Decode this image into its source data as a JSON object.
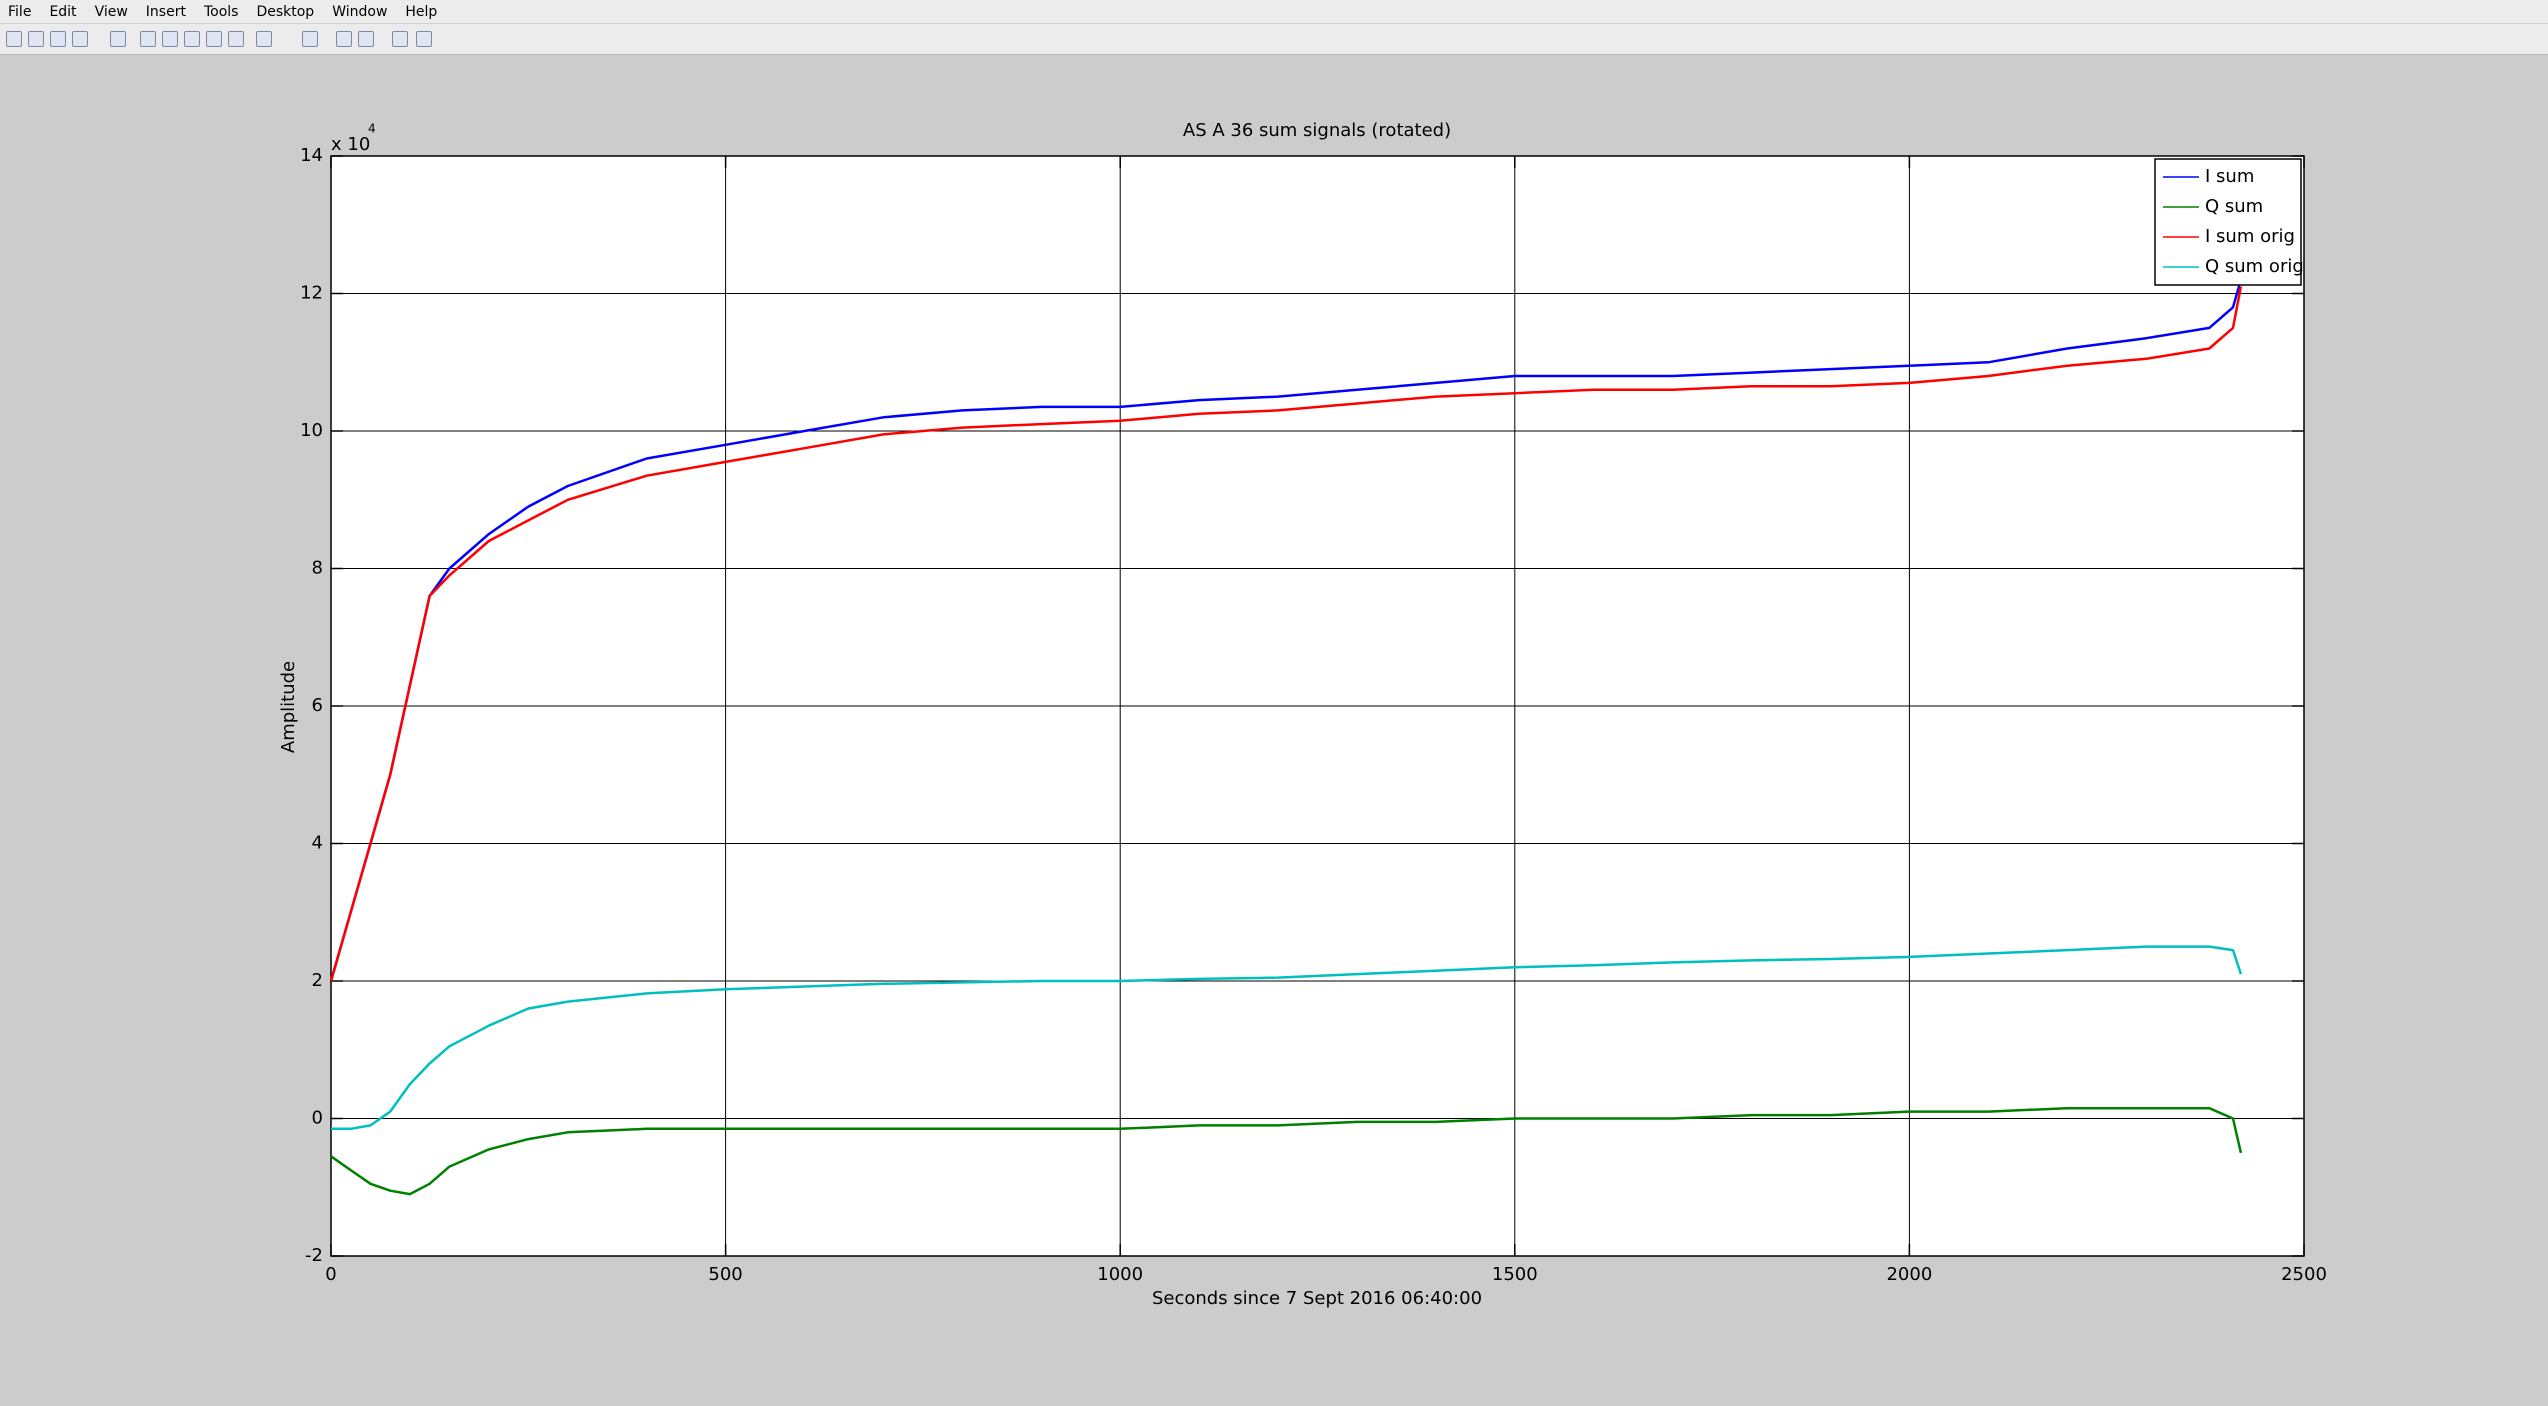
{
  "menu": [
    "File",
    "Edit",
    "View",
    "Insert",
    "Tools",
    "Desktop",
    "Window",
    "Help"
  ],
  "chart_data": {
    "type": "line",
    "title": "AS A 36 sum signals (rotated)",
    "x_label": "Seconds since 7 Sept 2016 06:40:00",
    "y_label": "Amplitude",
    "y_multiplier": "x 10",
    "y_exponent": "4",
    "x": [
      0,
      25,
      50,
      75,
      100,
      125,
      150,
      200,
      250,
      300,
      400,
      500,
      600,
      700,
      800,
      900,
      1000,
      1100,
      1200,
      1300,
      1400,
      1500,
      1600,
      1700,
      1800,
      1900,
      2000,
      2100,
      2200,
      2300,
      2380,
      2410,
      2420
    ],
    "series": [
      {
        "name": "I sum",
        "color": "#0000ff",
        "values": [
          2.0,
          3.0,
          4.0,
          5.0,
          6.3,
          7.6,
          8.0,
          8.5,
          8.9,
          9.2,
          9.6,
          9.8,
          10.0,
          10.2,
          10.3,
          10.35,
          10.35,
          10.45,
          10.5,
          10.6,
          10.7,
          10.8,
          10.8,
          10.8,
          10.85,
          10.9,
          10.95,
          11.0,
          11.2,
          11.35,
          11.5,
          11.8,
          12.2
        ]
      },
      {
        "name": "Q sum",
        "color": "#008000",
        "values": [
          -0.55,
          -0.75,
          -0.95,
          -1.05,
          -1.1,
          -0.95,
          -0.7,
          -0.45,
          -0.3,
          -0.2,
          -0.15,
          -0.15,
          -0.15,
          -0.15,
          -0.15,
          -0.15,
          -0.15,
          -0.1,
          -0.1,
          -0.05,
          -0.05,
          0.0,
          0.0,
          0.0,
          0.05,
          0.05,
          0.1,
          0.1,
          0.15,
          0.15,
          0.15,
          0.0,
          -0.5
        ]
      },
      {
        "name": "I sum orig",
        "color": "#ff0000",
        "values": [
          2.0,
          3.0,
          4.0,
          5.0,
          6.3,
          7.6,
          7.9,
          8.4,
          8.7,
          9.0,
          9.35,
          9.55,
          9.75,
          9.95,
          10.05,
          10.1,
          10.15,
          10.25,
          10.3,
          10.4,
          10.5,
          10.55,
          10.6,
          10.6,
          10.65,
          10.65,
          10.7,
          10.8,
          10.95,
          11.05,
          11.2,
          11.5,
          12.1
        ]
      },
      {
        "name": "Q sum orig",
        "color": "#00bfbf",
        "values": [
          -0.15,
          -0.15,
          -0.1,
          0.1,
          0.5,
          0.8,
          1.05,
          1.35,
          1.6,
          1.7,
          1.82,
          1.88,
          1.92,
          1.96,
          1.98,
          2.0,
          2.0,
          2.03,
          2.05,
          2.1,
          2.15,
          2.2,
          2.23,
          2.27,
          2.3,
          2.32,
          2.35,
          2.4,
          2.45,
          2.5,
          2.5,
          2.45,
          2.1
        ]
      }
    ],
    "xlim": [
      0,
      2500
    ],
    "ylim": [
      -2,
      14
    ],
    "xticks": [
      0,
      500,
      1000,
      1500,
      2000,
      2500
    ],
    "yticks": [
      -2,
      0,
      2,
      4,
      6,
      8,
      10,
      12,
      14
    ],
    "grid": true,
    "legend": "upper right"
  }
}
